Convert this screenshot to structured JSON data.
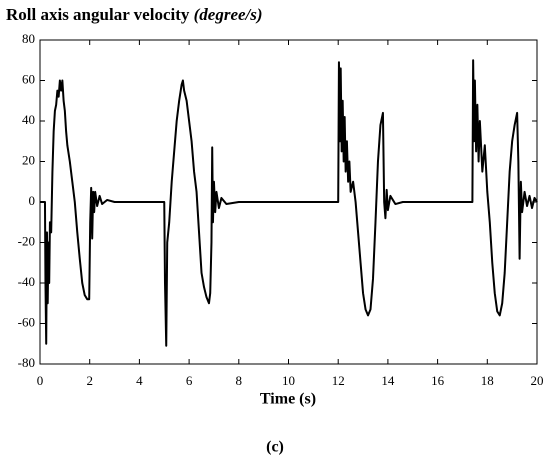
{
  "chart_data": {
    "type": "line",
    "title": "Roll axis angular velocity",
    "title_unit": "(degree/s)",
    "xlabel": "Time (s)",
    "caption": "(c)",
    "color": "#000000",
    "xlim": [
      0,
      20
    ],
    "xticks": [
      0,
      2,
      4,
      6,
      8,
      10,
      12,
      14,
      16,
      18,
      20
    ],
    "ylim": [
      -80,
      80
    ],
    "yticks": [
      -80,
      -60,
      -40,
      -20,
      0,
      20,
      40,
      60,
      80
    ],
    "x": [
      0,
      0.15,
      0.2,
      0.22,
      0.25,
      0.28,
      0.31,
      0.34,
      0.37,
      0.4,
      0.45,
      0.5,
      0.55,
      0.6,
      0.65,
      0.7,
      0.75,
      0.8,
      0.85,
      0.9,
      0.95,
      1.0,
      1.05,
      1.1,
      1.2,
      1.3,
      1.4,
      1.5,
      1.6,
      1.7,
      1.8,
      1.9,
      1.98,
      2.02,
      2.06,
      2.1,
      2.14,
      2.18,
      2.22,
      2.3,
      2.4,
      2.5,
      2.7,
      3.0,
      5.0,
      5.03,
      5.08,
      5.12,
      5.2,
      5.3,
      5.4,
      5.5,
      5.6,
      5.7,
      5.75,
      5.8,
      5.9,
      6.0,
      6.1,
      6.2,
      6.3,
      6.4,
      6.5,
      6.6,
      6.7,
      6.8,
      6.85,
      6.9,
      6.93,
      6.96,
      7.0,
      7.05,
      7.1,
      7.2,
      7.3,
      7.5,
      8.0,
      12.0,
      12.03,
      12.07,
      12.1,
      12.14,
      12.18,
      12.22,
      12.26,
      12.3,
      12.35,
      12.4,
      12.45,
      12.5,
      12.6,
      12.7,
      12.8,
      12.9,
      13.0,
      13.1,
      13.2,
      13.3,
      13.4,
      13.5,
      13.6,
      13.7,
      13.8,
      13.85,
      13.9,
      13.95,
      14.0,
      14.1,
      14.3,
      14.6,
      17.4,
      17.43,
      17.47,
      17.5,
      17.55,
      17.6,
      17.65,
      17.7,
      17.8,
      17.9,
      18.0,
      18.1,
      18.2,
      18.3,
      18.4,
      18.5,
      18.6,
      18.7,
      18.8,
      18.9,
      19.0,
      19.1,
      19.2,
      19.25,
      19.3,
      19.35,
      19.4,
      19.5,
      19.6,
      19.7,
      19.8,
      19.9,
      20.0
    ],
    "values": [
      0,
      0,
      0,
      -40,
      -70,
      -15,
      -50,
      -20,
      -40,
      -10,
      -15,
      15,
      35,
      45,
      48,
      55,
      52,
      60,
      55,
      60,
      50,
      45,
      35,
      28,
      20,
      10,
      0,
      -15,
      -28,
      -40,
      -46,
      -48,
      -48,
      -10,
      7,
      -18,
      5,
      -5,
      5,
      -2,
      3,
      -1,
      1,
      0,
      0,
      -40,
      -71,
      -20,
      -10,
      10,
      25,
      40,
      50,
      58,
      60,
      55,
      50,
      40,
      30,
      15,
      5,
      -15,
      -35,
      -42,
      -47,
      -50,
      -45,
      -20,
      27,
      -10,
      10,
      -5,
      5,
      -3,
      2,
      -1,
      0,
      0,
      69,
      30,
      66,
      25,
      50,
      20,
      42,
      15,
      30,
      10,
      20,
      5,
      10,
      0,
      -15,
      -30,
      -45,
      -53,
      -56,
      -53,
      -38,
      -10,
      20,
      38,
      44,
      0,
      -8,
      6,
      -4,
      3,
      -1,
      0,
      0,
      70,
      30,
      60,
      25,
      48,
      20,
      40,
      15,
      28,
      5,
      -10,
      -30,
      -45,
      -54,
      -56,
      -50,
      -35,
      -10,
      15,
      30,
      38,
      44,
      20,
      -28,
      10,
      -5,
      5,
      -2,
      3,
      -3,
      2,
      0
    ]
  }
}
